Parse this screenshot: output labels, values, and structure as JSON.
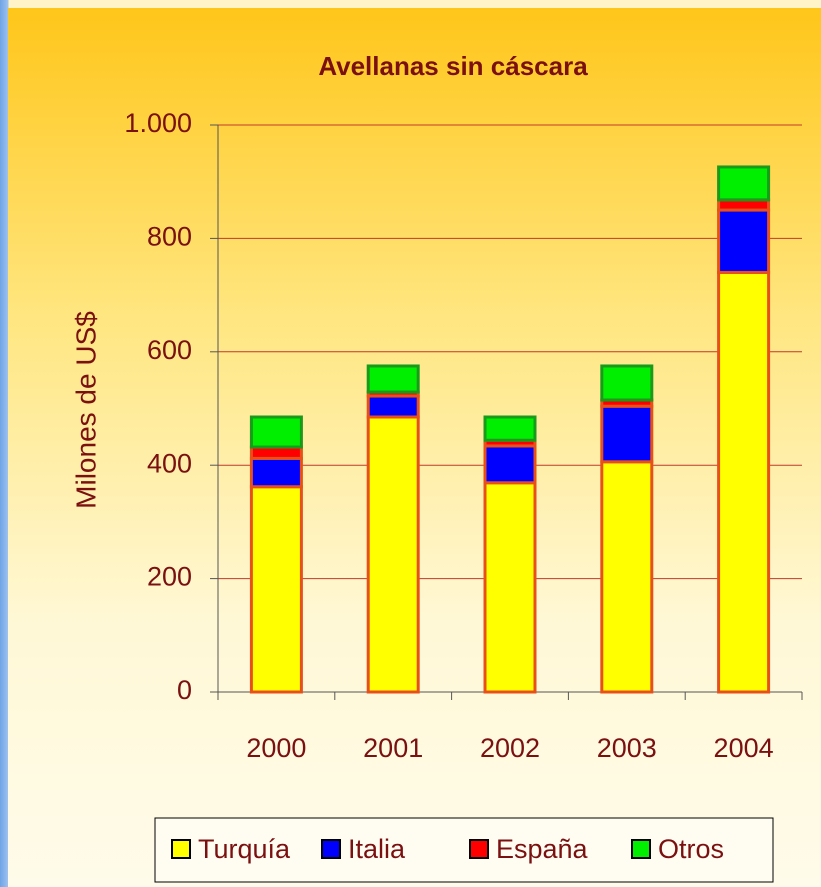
{
  "chart_data": {
    "type": "stacked_bar",
    "title": "Avellanas sin cáscara",
    "y_label": "Milones de US$",
    "categories": [
      "2000",
      "2001",
      "2002",
      "2003",
      "2004"
    ],
    "series": [
      {
        "name": "Turquía",
        "color": "#ffff00",
        "values": [
          362,
          485,
          369,
          406,
          740
        ]
      },
      {
        "name": "Italia",
        "color": "#0000ff",
        "values": [
          50,
          37,
          65,
          98,
          110
        ]
      },
      {
        "name": "España",
        "color": "#ff0000",
        "values": [
          20,
          7,
          10,
          11,
          18
        ]
      },
      {
        "name": "Otros",
        "color": "#00ee00",
        "values": [
          53,
          46,
          41,
          60,
          58
        ]
      }
    ],
    "ylim": [
      0,
      1000
    ],
    "yticks": [
      0,
      200,
      400,
      600,
      800,
      {
        "value": 1000,
        "label": "1.000"
      }
    ],
    "grid": true,
    "legend": "bottom"
  }
}
